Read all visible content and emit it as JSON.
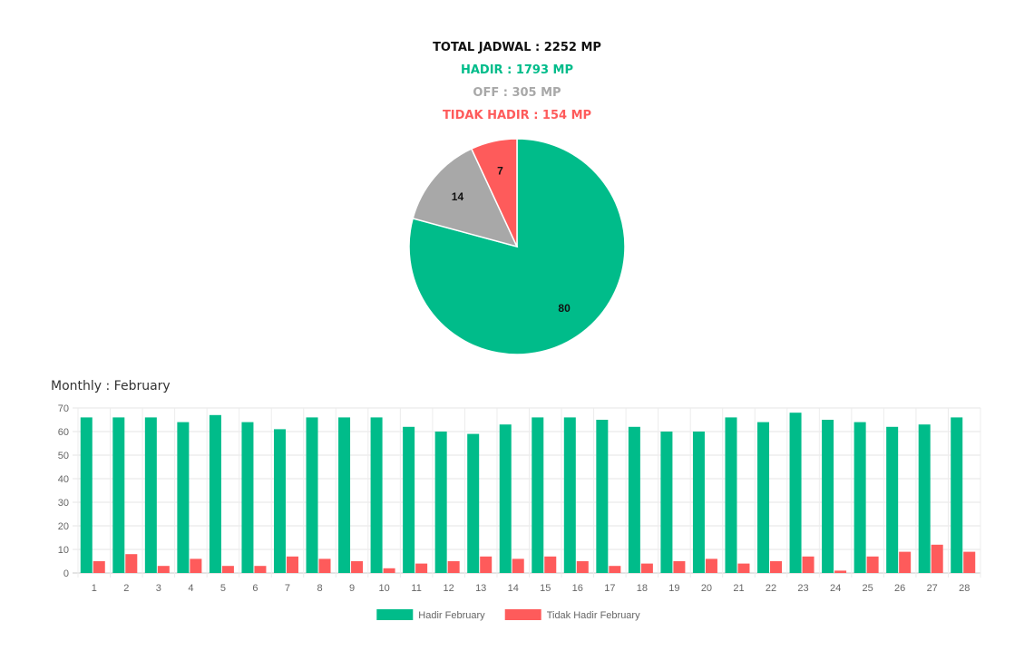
{
  "summary": {
    "total": "TOTAL JADWAL : 2252 MP",
    "hadir": "HADIR : 1793 MP",
    "off": "OFF : 305 MP",
    "tidak_hadir": "TIDAK HADIR : 154 MP"
  },
  "colors": {
    "hadir": "#00bc8a",
    "off": "#a8a8a8",
    "tidak_hadir": "#fe5b5b",
    "total": "#111111"
  },
  "monthly": {
    "title": "Monthly : February"
  },
  "chart_data": [
    {
      "type": "pie",
      "title": "",
      "slices": [
        {
          "label": "Hadir",
          "value": 80,
          "color": "#00bc8a"
        },
        {
          "label": "Off",
          "value": 14,
          "color": "#a8a8a8"
        },
        {
          "label": "Tidak Hadir",
          "value": 7,
          "color": "#fe5b5b"
        }
      ]
    },
    {
      "type": "bar",
      "title": "",
      "xlabel": "",
      "ylabel": "",
      "ylim": [
        0,
        70
      ],
      "yticks": [
        0,
        10,
        20,
        30,
        40,
        50,
        60,
        70
      ],
      "grid": true,
      "legend": "bottom",
      "categories": [
        "1",
        "2",
        "3",
        "4",
        "5",
        "6",
        "7",
        "8",
        "9",
        "10",
        "11",
        "12",
        "13",
        "14",
        "15",
        "16",
        "17",
        "18",
        "19",
        "20",
        "21",
        "22",
        "23",
        "24",
        "25",
        "26",
        "27",
        "28"
      ],
      "series": [
        {
          "name": "Hadir February",
          "color": "#00bc8a",
          "values": [
            66,
            66,
            66,
            64,
            67,
            64,
            61,
            66,
            66,
            66,
            62,
            60,
            59,
            63,
            66,
            66,
            65,
            62,
            60,
            60,
            66,
            64,
            68,
            65,
            64,
            62,
            63,
            66
          ]
        },
        {
          "name": "Tidak Hadir February",
          "color": "#fe5b5b",
          "values": [
            5,
            8,
            3,
            6,
            3,
            3,
            7,
            6,
            5,
            2,
            4,
            5,
            7,
            6,
            7,
            5,
            3,
            4,
            5,
            6,
            4,
            5,
            7,
            1,
            7,
            9,
            12,
            9
          ]
        }
      ]
    }
  ]
}
